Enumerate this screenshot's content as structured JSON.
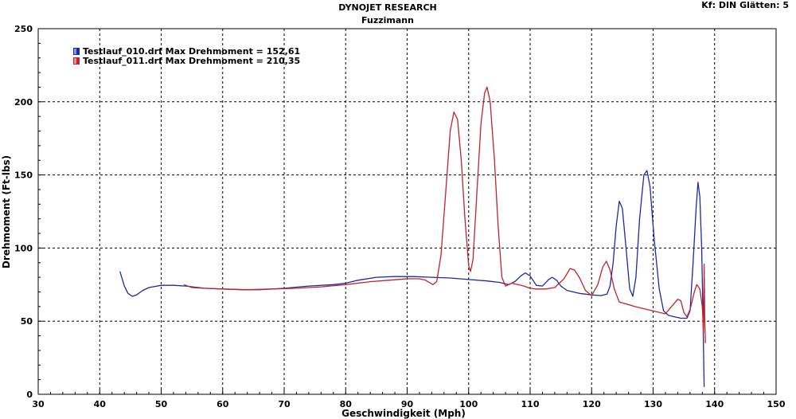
{
  "chart_data": {
    "type": "line",
    "title": "DYNOJET RESEARCH",
    "subtitle": "Fuzzimann",
    "corner_text": "Kf: DIN  Glätten: 5",
    "xlabel": "Geschwindigkeit (Mph)",
    "ylabel": "Drehmoment (Ft-lbs)",
    "xlim": [
      30,
      150
    ],
    "ylim": [
      0,
      250
    ],
    "xticks": [
      30,
      40,
      50,
      60,
      70,
      80,
      90,
      100,
      110,
      120,
      130,
      140,
      150
    ],
    "yticks": [
      0,
      50,
      100,
      150,
      200,
      250
    ],
    "grid": true,
    "legend_position": "top-left",
    "series": [
      {
        "name": "Testlauf_010.drf Max Drehmoment = 152,61",
        "color": "#1c2aa8",
        "points": [
          [
            43.3,
            84
          ],
          [
            44.0,
            74
          ],
          [
            44.6,
            69
          ],
          [
            45.3,
            67
          ],
          [
            46.0,
            68
          ],
          [
            47.0,
            71
          ],
          [
            48.0,
            73
          ],
          [
            50.0,
            74.5
          ],
          [
            52.0,
            74.5
          ],
          [
            54.0,
            74
          ],
          [
            57.0,
            72.5
          ],
          [
            60.0,
            72
          ],
          [
            63.0,
            71.5
          ],
          [
            66.0,
            71.5
          ],
          [
            70.0,
            72.5
          ],
          [
            74.0,
            74
          ],
          [
            78.0,
            75
          ],
          [
            80.0,
            76
          ],
          [
            82.0,
            78
          ],
          [
            85.0,
            80
          ],
          [
            88.0,
            80.5
          ],
          [
            91.0,
            80.5
          ],
          [
            94.0,
            80
          ],
          [
            97.0,
            79.5
          ],
          [
            100.0,
            78.5
          ],
          [
            103.0,
            77.5
          ],
          [
            105.0,
            76.5
          ],
          [
            106.5,
            75
          ],
          [
            107.5,
            77
          ],
          [
            108.5,
            81
          ],
          [
            109.2,
            83
          ],
          [
            110.0,
            81
          ],
          [
            111.0,
            74.5
          ],
          [
            112.0,
            74
          ],
          [
            113.0,
            78.5
          ],
          [
            113.6,
            80
          ],
          [
            114.3,
            78
          ],
          [
            115.0,
            74
          ],
          [
            116.0,
            71
          ],
          [
            118.0,
            69
          ],
          [
            120.0,
            68
          ],
          [
            121.5,
            67.5
          ],
          [
            122.5,
            68.5
          ],
          [
            123.0,
            74
          ],
          [
            123.5,
            90
          ],
          [
            124.0,
            115
          ],
          [
            124.5,
            132
          ],
          [
            125.0,
            127
          ],
          [
            125.6,
            100
          ],
          [
            126.2,
            72
          ],
          [
            126.7,
            67
          ],
          [
            127.2,
            80
          ],
          [
            127.8,
            120
          ],
          [
            128.5,
            150
          ],
          [
            129.0,
            153
          ],
          [
            129.5,
            142
          ],
          [
            130.2,
            105
          ],
          [
            131.0,
            72
          ],
          [
            131.7,
            57
          ],
          [
            132.5,
            54
          ],
          [
            133.5,
            53
          ],
          [
            134.5,
            52
          ],
          [
            135.5,
            52
          ],
          [
            136.0,
            57
          ],
          [
            136.5,
            90
          ],
          [
            137.0,
            128
          ],
          [
            137.3,
            145
          ],
          [
            137.6,
            135
          ],
          [
            137.9,
            100
          ],
          [
            138.1,
            55
          ],
          [
            138.3,
            5
          ]
        ]
      },
      {
        "name": "Testlauf_011.drf Max Drehmoment = 210,35",
        "color": "#c0232c",
        "points": [
          [
            53.7,
            75
          ],
          [
            55.0,
            73
          ],
          [
            57.0,
            72.5
          ],
          [
            60.0,
            72
          ],
          [
            64.0,
            71.5
          ],
          [
            68.0,
            72
          ],
          [
            72.0,
            72.5
          ],
          [
            76.0,
            73.5
          ],
          [
            80.0,
            75
          ],
          [
            84.0,
            77
          ],
          [
            87.0,
            78
          ],
          [
            90.0,
            79
          ],
          [
            92.0,
            79
          ],
          [
            93.0,
            78
          ],
          [
            94.2,
            75
          ],
          [
            94.8,
            77
          ],
          [
            95.5,
            95
          ],
          [
            96.3,
            140
          ],
          [
            97.0,
            180
          ],
          [
            97.6,
            193
          ],
          [
            98.2,
            188
          ],
          [
            98.8,
            160
          ],
          [
            99.4,
            120
          ],
          [
            100.0,
            88
          ],
          [
            100.3,
            84
          ],
          [
            100.7,
            92
          ],
          [
            101.3,
            135
          ],
          [
            102.0,
            185
          ],
          [
            102.6,
            206
          ],
          [
            103.0,
            210
          ],
          [
            103.5,
            200
          ],
          [
            104.2,
            160
          ],
          [
            104.8,
            115
          ],
          [
            105.4,
            80
          ],
          [
            106.0,
            74
          ],
          [
            107.0,
            76
          ],
          [
            108.0,
            75
          ],
          [
            109.0,
            74
          ],
          [
            110.0,
            72.5
          ],
          [
            111.0,
            72
          ],
          [
            112.5,
            72
          ],
          [
            114.0,
            73
          ],
          [
            115.5,
            79
          ],
          [
            116.5,
            86
          ],
          [
            117.2,
            85
          ],
          [
            118.0,
            80
          ],
          [
            119.0,
            71
          ],
          [
            120.0,
            67.5
          ],
          [
            121.0,
            75
          ],
          [
            121.8,
            87
          ],
          [
            122.4,
            91
          ],
          [
            123.0,
            85
          ],
          [
            123.7,
            72
          ],
          [
            124.5,
            63
          ],
          [
            125.5,
            62
          ],
          [
            127.0,
            60
          ],
          [
            129.0,
            58
          ],
          [
            130.5,
            56.5
          ],
          [
            132.0,
            55
          ],
          [
            133.0,
            60
          ],
          [
            134.0,
            65
          ],
          [
            134.5,
            64
          ],
          [
            135.0,
            56
          ],
          [
            135.5,
            53
          ],
          [
            136.0,
            58
          ],
          [
            136.7,
            70
          ],
          [
            137.1,
            75
          ],
          [
            137.6,
            72
          ],
          [
            138.0,
            60
          ],
          [
            138.2,
            42
          ],
          [
            138.3,
            89
          ],
          [
            138.4,
            50
          ],
          [
            138.5,
            35
          ]
        ]
      }
    ]
  }
}
